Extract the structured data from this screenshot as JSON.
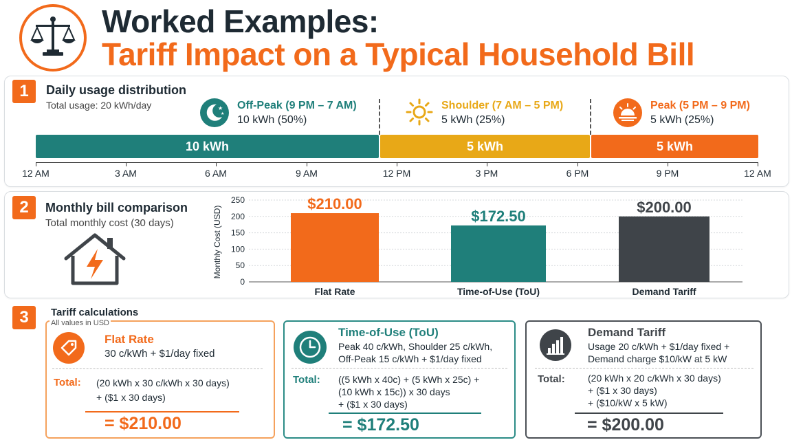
{
  "header": {
    "title_line1": "Worked Examples:",
    "title_line2": "Tariff Impact on a Typical Household Bill",
    "logo_icon": "scales-icon"
  },
  "colors": {
    "orange": "#f26a1b",
    "teal": "#1f7f7a",
    "amber": "#e8a817",
    "dark": "#3f4449"
  },
  "section1": {
    "number": "1",
    "title": "Daily usage distribution",
    "subtitle": "Total usage: 20 kWh/day",
    "periods": [
      {
        "name": "Off-Peak (9 PM – 7 AM)",
        "value": "10 kWh (50%)",
        "icon": "moon-stars-icon",
        "bar_label": "10 kWh"
      },
      {
        "name": "Shoulder (7 AM – 5 PM)",
        "value": "5 kWh (25%)",
        "icon": "sun-icon",
        "bar_label": "5 kWh"
      },
      {
        "name": "Peak (5 PM – 9 PM)",
        "value": "5 kWh (25%)",
        "icon": "sunset-icon",
        "bar_label": "5 kWh"
      }
    ],
    "time_ticks": [
      "12 AM",
      "3 AM",
      "6 AM",
      "9 AM",
      "12 PM",
      "3 PM",
      "6 PM",
      "9 PM",
      "12 AM"
    ]
  },
  "section2": {
    "number": "2",
    "title": "Monthly bill comparison",
    "subtitle": "Total monthly cost (30 days)",
    "icon": "house-lightning-icon"
  },
  "chart_data": {
    "type": "bar",
    "categories": [
      "Flat Rate",
      "Time-of-Use (ToU)",
      "Demand Tariff"
    ],
    "values": [
      210.0,
      172.5,
      200.0
    ],
    "data_labels": [
      "$210.00",
      "$172.50",
      "$200.00"
    ],
    "colors": [
      "#f26a1b",
      "#1f7f7a",
      "#3f4449"
    ],
    "ylabel": "Monthly Cost (USD)",
    "ylim": [
      0,
      250
    ],
    "yticks": [
      0,
      50,
      100,
      150,
      200,
      250
    ],
    "grid": true
  },
  "section3": {
    "number": "3",
    "title": "Tariff calculations",
    "note": "All values in USD",
    "cards": [
      {
        "title": "Flat Rate",
        "icon": "price-tag-icon",
        "desc": [
          "30 c/kWh + $1/day fixed"
        ],
        "total_label": "Total:",
        "calc": [
          "(20 kWh x 30 c/kWh x 30 days)",
          "+ ($1 x 30 days)"
        ],
        "total": "= $210.00"
      },
      {
        "title": "Time-of-Use (ToU)",
        "icon": "clock-icon",
        "desc": [
          "Peak 40 c/kWh, Shoulder 25 c/kWh,",
          "Off-Peak 15 c/kWh + $1/day fixed"
        ],
        "total_label": "Total:",
        "calc": [
          "((5 kWh x 40c) + (5 kWh x 25c) +",
          "(10 kWh x 15c)) x 30 days",
          "+ ($1 x 30 days)"
        ],
        "total": "= $172.50"
      },
      {
        "title": "Demand Tariff",
        "icon": "bar-chart-icon",
        "desc": [
          "Usage 20 c/kWh + $1/day fixed +",
          "Demand charge $10/kW at 5 kW"
        ],
        "total_label": "Total:",
        "calc": [
          "(20 kWh x 20 c/kWh x 30 days)",
          "+ ($1 x 30 days)",
          "+ ($10/kW x 5 kW)"
        ],
        "total": "= $200.00"
      }
    ]
  }
}
